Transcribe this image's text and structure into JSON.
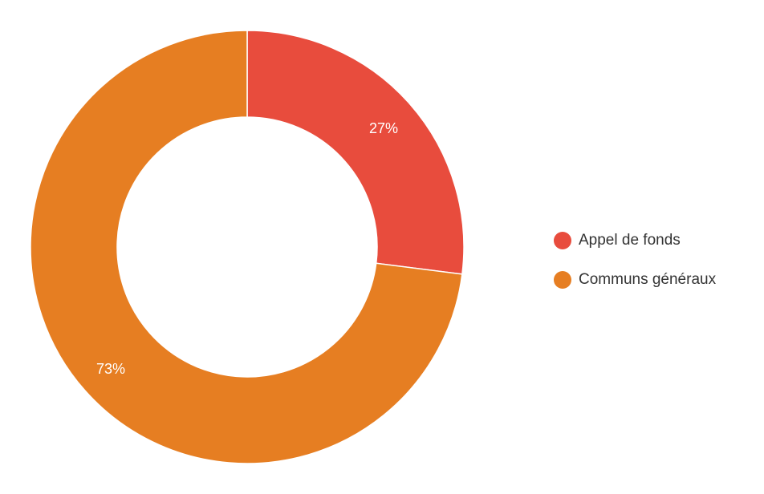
{
  "chart_data": {
    "type": "pie",
    "variant": "donut",
    "title": "",
    "categories": [
      "Appel de fonds",
      "Communs généraux"
    ],
    "values": [
      27,
      73
    ],
    "labels": [
      "27%",
      "73%"
    ],
    "colors": [
      "#E84C3D",
      "#E67E22"
    ],
    "legend": "right"
  }
}
